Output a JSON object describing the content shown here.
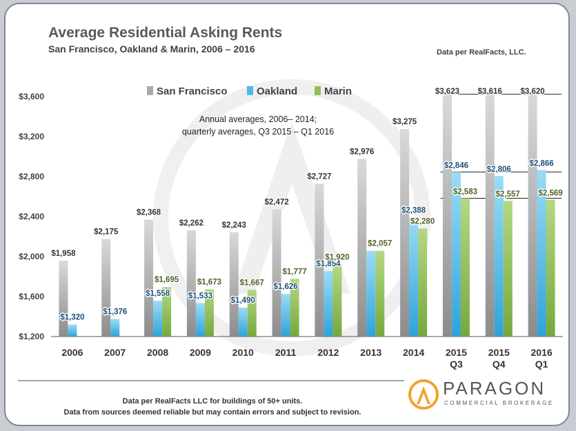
{
  "header": {
    "title": "Average Residential Asking Rents",
    "subtitle": "San Francisco, Oakland & Marin, 2006 – 2016",
    "source": "Data per RealFacts, LLC."
  },
  "note": {
    "line1": "Annual averages, 2006– 2014;",
    "line2": "quarterly averages, Q3 2015 – Q1 2016"
  },
  "footer": {
    "line1": "Data per RealFacts LLC  for buildings of 50+ units.",
    "line2": "Data from sources deemed reliable but may contain errors  and subject to revision."
  },
  "logo": {
    "name": "PARAGON",
    "tagline": "COMMERCIAL BROKERAGE"
  },
  "colors": {
    "sf": "#a9a9a9",
    "oakland": "#4fb8e8",
    "marin": "#8fbf56",
    "sf_label": "#333333",
    "oakland_label": "#1f4e79",
    "marin_label": "#4f6228"
  },
  "chart_data": {
    "type": "bar",
    "categories": [
      "2006",
      "2007",
      "2008",
      "2009",
      "2010",
      "2011",
      "2012",
      "2013",
      "2014",
      "2015\nQ3",
      "2015\nQ4",
      "2016\nQ1"
    ],
    "series": [
      {
        "name": "San Francisco",
        "values": [
          1958,
          2175,
          2368,
          2262,
          2243,
          2472,
          2727,
          2976,
          3275,
          3623,
          3616,
          3620
        ],
        "labels": [
          "$1,958",
          "$2,175",
          "$2,368",
          "$2,262",
          "$2,243",
          "$2,472",
          "$2,727",
          "$2,976",
          "$3,275",
          "$3,623",
          "$3,616",
          "$3,620"
        ]
      },
      {
        "name": "Oakland",
        "values": [
          1320,
          1376,
          1558,
          1533,
          1490,
          1626,
          1854,
          2057,
          2388,
          2846,
          2806,
          2866
        ],
        "labels": [
          "$1,320",
          "$1,376",
          "$1,558",
          "$1,533",
          "$1,490",
          "$1,626",
          "$1,854",
          "",
          "$2,388",
          "$2,846",
          "$2,806",
          "$2,866"
        ]
      },
      {
        "name": "Marin",
        "values": [
          null,
          null,
          1695,
          1673,
          1667,
          1777,
          1920,
          2057,
          2280,
          2583,
          2557,
          2569
        ],
        "labels": [
          "",
          "",
          "$1,695",
          "$1,673",
          "$1,667",
          "$1,777",
          "$1,920",
          "$2,057",
          "$2,280",
          "$2,583",
          "$2,557",
          "$2,569"
        ]
      }
    ],
    "yticks": [
      "$1,200",
      "$1,600",
      "$2,000",
      "$2,400",
      "$2,800",
      "$3,200",
      "$3,600"
    ],
    "ylim": [
      1200,
      3700
    ],
    "legend": "top-center",
    "grid": false,
    "reference_lines": [
      3623,
      2846,
      2583
    ]
  }
}
